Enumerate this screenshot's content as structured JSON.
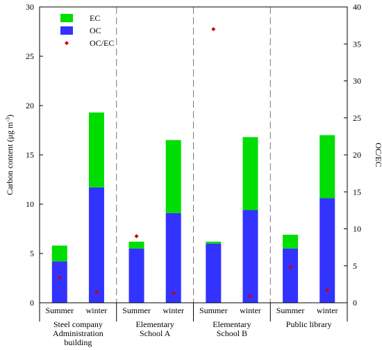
{
  "chart_data": {
    "type": "bar",
    "stacked": true,
    "groups": [
      "Steel company\nAdministration\nbuilding",
      "Elementary\nSchool A",
      "Elementary\nSchool B",
      "Public library"
    ],
    "categories": [
      "Summer",
      "winter",
      "Summer",
      "winter",
      "Summer",
      "winter",
      "Summer",
      "winter"
    ],
    "series": [
      {
        "name": "OC",
        "values": [
          4.2,
          11.7,
          5.5,
          9.1,
          6.0,
          9.4,
          5.5,
          10.6
        ],
        "color": "#3333ff"
      },
      {
        "name": "EC",
        "values": [
          1.6,
          7.6,
          0.7,
          7.4,
          0.2,
          7.4,
          1.4,
          6.4
        ],
        "color": "#00dd00"
      },
      {
        "name": "OC/EC",
        "values": [
          3.4,
          1.4,
          9.0,
          1.3,
          37.0,
          0.9,
          4.8,
          1.7
        ],
        "color": "#cc0000",
        "axis": "right",
        "marker": "diamond"
      }
    ],
    "ylabel_parts": [
      "Carbon content (μg m",
      "-3",
      ")"
    ],
    "y2label": "OC/EC",
    "ylim": [
      0,
      30
    ],
    "yticks": [
      0,
      5,
      10,
      15,
      20,
      25,
      30
    ],
    "y2lim": [
      0,
      40
    ],
    "y2ticks": [
      0,
      5,
      10,
      15,
      20,
      25,
      30,
      35,
      40
    ],
    "legend_position": "top-left",
    "group_separators": "dashed"
  }
}
